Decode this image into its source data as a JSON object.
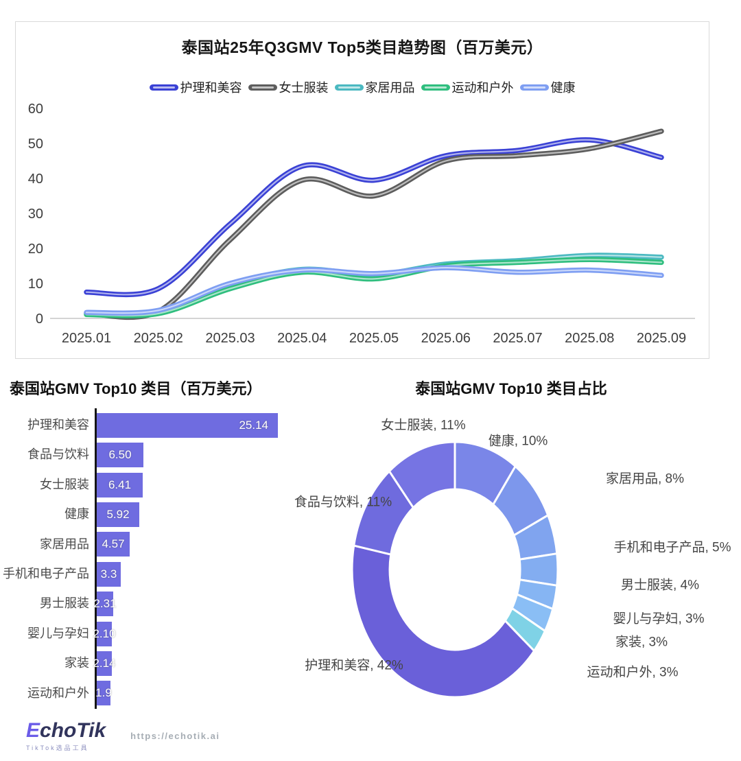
{
  "chart_data": [
    {
      "type": "line",
      "title": "泰国站25年Q3GMV Top5类目趋势图（百万美元）",
      "x": [
        "2025.01",
        "2025.02",
        "2025.03",
        "2025.04",
        "2025.05",
        "2025.06",
        "2025.07",
        "2025.08",
        "2025.09"
      ],
      "ylim": [
        0,
        60
      ],
      "y_ticks": [
        0,
        10,
        20,
        30,
        40,
        50,
        60
      ],
      "grid": false,
      "legend_position": "top",
      "series": [
        {
          "name": "护理和美容",
          "color": "#3A41D5",
          "values": [
            7.5,
            8.5,
            27,
            43.5,
            39.5,
            46.5,
            48,
            51,
            46
          ]
        },
        {
          "name": "女士服装",
          "color": "#5D5D5D",
          "values": [
            1.5,
            2,
            22.5,
            39.5,
            35,
            45,
            46.5,
            48.5,
            53.5
          ]
        },
        {
          "name": "家居用品",
          "color": "#4BB9C1",
          "values": [
            1.4,
            1.8,
            9.5,
            14,
            12.5,
            15.5,
            16.5,
            18,
            17.5
          ]
        },
        {
          "name": "运动和户外",
          "color": "#2FBE7E",
          "values": [
            1.1,
            1.4,
            8.5,
            13.2,
            11.3,
            15,
            16,
            16.8,
            16
          ]
        },
        {
          "name": "健康",
          "color": "#7E9EF2",
          "values": [
            1.7,
            2.3,
            10,
            13.8,
            12.8,
            14.5,
            13.2,
            13.8,
            12.3
          ]
        }
      ]
    },
    {
      "type": "bar",
      "orientation": "horizontal",
      "title": "泰国站GMV Top10 类目（百万美元）",
      "bar_color": "#6F6CE0",
      "xlim": [
        0,
        25.14
      ],
      "categories": [
        "护理和美容",
        "食品与饮料",
        "女士服装",
        "健康",
        "家居用品",
        "手机和电子产品",
        "男士服装",
        "婴儿与孕妇",
        "家装",
        "运动和户外"
      ],
      "values": [
        25.14,
        6.5,
        6.41,
        5.92,
        4.57,
        3.3,
        2.31,
        2.1,
        2.14,
        1.9
      ],
      "value_labels": [
        "25.14",
        "6.50",
        "6.41",
        "5.92",
        "4.57",
        "3.3",
        "2.31",
        "2.10",
        "2.14",
        "1.9"
      ]
    },
    {
      "type": "pie",
      "subtype": "donut",
      "title": "泰国站GMV Top10 类目占比",
      "start_angle": "top",
      "direction": "clockwise",
      "slices": [
        {
          "label": "健康",
          "pct": 10,
          "color": "#7A86E8",
          "label_display": "健康, 10%"
        },
        {
          "label": "家居用品",
          "pct": 8,
          "color": "#7D97EC",
          "label_display": "家居用品, 8%"
        },
        {
          "label": "手机和电子产品",
          "pct": 5,
          "color": "#80A4EF",
          "label_display": "手机和电子产品, 5%"
        },
        {
          "label": "男士服装",
          "pct": 4,
          "color": "#83ADF1",
          "label_display": "男士服装, 4%"
        },
        {
          "label": "婴儿与孕妇",
          "pct": 3,
          "color": "#86B5F3",
          "label_display": "婴儿与孕妇, 3%"
        },
        {
          "label": "家装",
          "pct": 3,
          "color": "#8ABEF5",
          "label_display": "家装, 3%"
        },
        {
          "label": "运动和户外",
          "pct": 3,
          "color": "#7FD2E6",
          "label_display": "运动和户外, 3%"
        },
        {
          "label": "护理和美容",
          "pct": 42,
          "color": "#6A60D9",
          "label_display": "护理和美容, 42%"
        },
        {
          "label": "食品与饮料",
          "pct": 11,
          "color": "#6F6BDE",
          "label_display": "食品与饮料, 11%"
        },
        {
          "label": "女士服装",
          "pct": 11,
          "color": "#7674E3",
          "label_display": "女士服装, 11%"
        }
      ]
    }
  ],
  "footer": {
    "logo": "EchoTik",
    "logo_first_letter": "E",
    "logo_rest": "choTik",
    "logo_tagline": "TikTok选品工具",
    "url": "https://echotik.ai"
  }
}
